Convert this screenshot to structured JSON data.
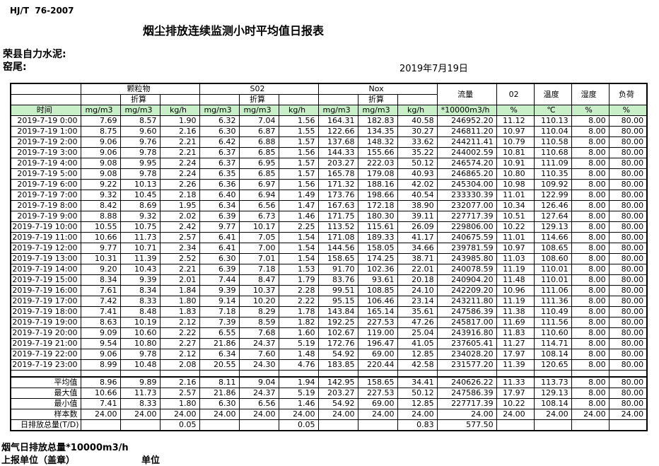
{
  "meta": {
    "standard": "HJ/T  76-2007",
    "title": "烟尘排放连续监测小时平均值日报表",
    "company": "荣县自力水泥:",
    "station": "窑尾:",
    "date": "2019年7月19日"
  },
  "colors": {
    "header_green": "#c8efc8",
    "border": "#000000",
    "background": "#ffffff"
  },
  "table": {
    "time_header": "时间",
    "converted_label": "折算",
    "groups": [
      "颗粒物",
      "S02",
      "Nox"
    ],
    "scalar_headers": [
      "流量",
      "02",
      "温度",
      "湿度",
      "负荷"
    ],
    "unit_headers": [
      "mg/m3",
      "mg/m3",
      "kg/h",
      "mg/m3",
      "mg/m3",
      "kg/h",
      "mg/m3",
      "mg/m3",
      "kg/h",
      "*10000m3/h",
      "%",
      "℃",
      "%",
      "%"
    ],
    "rows": [
      {
        "time": "2019-7-19 0:00",
        "values": [
          "7.69",
          "8.57",
          "1.90",
          "6.32",
          "7.04",
          "1.56",
          "164.31",
          "182.83",
          "40.58",
          "246952.20",
          "11.12",
          "110.13",
          "8.00",
          "80.00"
        ]
      },
      {
        "time": "2019-7-19 1:00",
        "values": [
          "8.75",
          "9.60",
          "2.16",
          "6.30",
          "6.87",
          "1.55",
          "122.66",
          "134.35",
          "30.27",
          "246811.20",
          "10.97",
          "110.04",
          "8.00",
          "80.00"
        ]
      },
      {
        "time": "2019-7-19 2:00",
        "values": [
          "9.06",
          "9.76",
          "2.21",
          "6.42",
          "6.88",
          "1.57",
          "137.68",
          "148.32",
          "33.62",
          "244211.41",
          "10.79",
          "110.58",
          "8.00",
          "80.00"
        ]
      },
      {
        "time": "2019-7-19 3:00",
        "values": [
          "9.06",
          "9.78",
          "2.21",
          "6.37",
          "6.85",
          "1.56",
          "144.33",
          "155.66",
          "35.22",
          "244002.59",
          "10.81",
          "110.68",
          "8.00",
          "80.00"
        ]
      },
      {
        "time": "2019-7-19 4:00",
        "values": [
          "9.08",
          "9.95",
          "2.24",
          "6.37",
          "6.95",
          "1.57",
          "203.27",
          "222.03",
          "50.12",
          "246574.20",
          "10.91",
          "111.09",
          "8.00",
          "80.00"
        ]
      },
      {
        "time": "2019-7-19 5:00",
        "values": [
          "9.08",
          "9.78",
          "2.24",
          "6.35",
          "6.85",
          "1.57",
          "165.78",
          "179.08",
          "40.93",
          "246865.20",
          "10.80",
          "110.35",
          "8.00",
          "80.00"
        ]
      },
      {
        "time": "2019-7-19 6:00",
        "values": [
          "9.22",
          "10.13",
          "2.26",
          "6.36",
          "6.97",
          "1.56",
          "171.32",
          "188.16",
          "42.02",
          "245304.00",
          "10.98",
          "109.92",
          "8.00",
          "80.00"
        ]
      },
      {
        "time": "2019-7-19 7:00",
        "values": [
          "9.32",
          "10.45",
          "2.18",
          "6.40",
          "6.94",
          "1.49",
          "173.76",
          "198.66",
          "40.54",
          "233330.39",
          "11.01",
          "122.99",
          "8.00",
          "80.00"
        ]
      },
      {
        "time": "2019-7-19 8:00",
        "values": [
          "8.42",
          "8.69",
          "1.95",
          "6.34",
          "6.56",
          "1.47",
          "167.63",
          "172.18",
          "38.90",
          "232077.00",
          "10.34",
          "126.46",
          "8.00",
          "80.00"
        ]
      },
      {
        "time": "2019-7-19 9:00",
        "values": [
          "8.88",
          "9.32",
          "2.02",
          "6.39",
          "6.73",
          "1.46",
          "171.75",
          "180.30",
          "39.11",
          "227717.39",
          "10.51",
          "127.64",
          "8.00",
          "80.00"
        ]
      },
      {
        "time": "2019-7-19 10:00",
        "values": [
          "10.55",
          "10.75",
          "2.42",
          "9.77",
          "10.17",
          "2.25",
          "113.52",
          "115.61",
          "26.09",
          "229806.00",
          "10.22",
          "129.13",
          "8.00",
          "80.00"
        ]
      },
      {
        "time": "2019-7-19 11:00",
        "values": [
          "10.66",
          "11.73",
          "2.57",
          "6.41",
          "7.05",
          "1.54",
          "171.08",
          "189.33",
          "41.17",
          "240675.59",
          "11.01",
          "114.66",
          "8.00",
          "80.00"
        ]
      },
      {
        "time": "2019-7-19 12:00",
        "values": [
          "9.77",
          "10.71",
          "2.34",
          "6.41",
          "7.00",
          "1.54",
          "144.56",
          "158.05",
          "34.66",
          "239781.59",
          "10.97",
          "108.65",
          "8.00",
          "80.00"
        ]
      },
      {
        "time": "2019-7-19 13:00",
        "values": [
          "10.31",
          "11.39",
          "2.52",
          "6.30",
          "7.01",
          "1.54",
          "158.65",
          "174.25",
          "38.71",
          "243985.80",
          "11.03",
          "108.60",
          "8.00",
          "80.00"
        ]
      },
      {
        "time": "2019-7-19 14:00",
        "values": [
          "9.20",
          "10.43",
          "2.21",
          "6.39",
          "7.18",
          "1.53",
          "91.70",
          "102.36",
          "22.01",
          "240078.59",
          "11.19",
          "110.01",
          "8.00",
          "80.00"
        ]
      },
      {
        "time": "2019-7-19 15:00",
        "values": [
          "8.34",
          "9.39",
          "2.01",
          "7.44",
          "8.47",
          "1.79",
          "83.76",
          "93.61",
          "20.18",
          "240904.20",
          "11.48",
          "110.01",
          "8.00",
          "80.00"
        ]
      },
      {
        "time": "2019-7-19 16:00",
        "values": [
          "7.61",
          "8.34",
          "1.84",
          "9.39",
          "10.37",
          "2.28",
          "99.51",
          "108.85",
          "24.10",
          "242209.20",
          "10.96",
          "111.06",
          "8.00",
          "80.00"
        ]
      },
      {
        "time": "2019-7-19 17:00",
        "values": [
          "7.42",
          "8.33",
          "1.80",
          "9.14",
          "10.20",
          "2.22",
          "95.15",
          "106.46",
          "23.14",
          "243211.80",
          "11.19",
          "111.36",
          "8.00",
          "80.00"
        ]
      },
      {
        "time": "2019-7-19 18:00",
        "values": [
          "7.41",
          "8.48",
          "1.83",
          "7.18",
          "8.29",
          "1.78",
          "143.84",
          "165.14",
          "35.61",
          "247586.39",
          "11.38",
          "110.49",
          "8.00",
          "80.00"
        ]
      },
      {
        "time": "2019-7-19 19:00",
        "values": [
          "8.63",
          "10.19",
          "2.12",
          "7.39",
          "8.59",
          "1.82",
          "192.25",
          "227.53",
          "47.26",
          "245817.00",
          "11.69",
          "111.56",
          "8.00",
          "80.00"
        ]
      },
      {
        "time": "2019-7-19 20:00",
        "values": [
          "9.09",
          "10.60",
          "2.22",
          "6.55",
          "7.68",
          "1.60",
          "102.67",
          "119.00",
          "25.04",
          "243916.80",
          "11.83",
          "110.60",
          "8.00",
          "80.00"
        ]
      },
      {
        "time": "2019-7-19 21:00",
        "values": [
          "9.54",
          "10.80",
          "2.27",
          "21.86",
          "24.37",
          "5.19",
          "172.76",
          "196.47",
          "41.05",
          "237605.41",
          "11.27",
          "114.71",
          "8.00",
          "80.00"
        ]
      },
      {
        "time": "2019-7-19 22:00",
        "values": [
          "9.06",
          "9.78",
          "2.12",
          "6.34",
          "7.60",
          "1.48",
          "54.92",
          "69.00",
          "12.85",
          "234028.20",
          "17.97",
          "108.14",
          "8.00",
          "80.00"
        ]
      },
      {
        "time": "2019-7-19 23:00",
        "values": [
          "8.99",
          "10.48",
          "2.08",
          "20.55",
          "24.30",
          "4.76",
          "183.85",
          "220.44",
          "42.58",
          "231577.20",
          "11.39",
          "120.65",
          "8.00",
          "80.00"
        ]
      }
    ],
    "summary": [
      {
        "label": "平均值",
        "values": [
          "8.96",
          "9.89",
          "2.16",
          "8.11",
          "9.04",
          "1.94",
          "142.95",
          "158.65",
          "34.41",
          "240626.22",
          "11.33",
          "113.73",
          "8.00",
          "80.00"
        ]
      },
      {
        "label": "最大值",
        "values": [
          "10.66",
          "11.73",
          "2.57",
          "21.86",
          "24.37",
          "5.19",
          "203.27",
          "227.53",
          "50.12",
          "247586.39",
          "17.97",
          "129.13",
          "8.00",
          "80.00"
        ]
      },
      {
        "label": "最小值",
        "values": [
          "7.41",
          "8.33",
          "1.80",
          "6.30",
          "6.56",
          "1.46",
          "54.92",
          "69.00",
          "12.85",
          "227717.39",
          "10.22",
          "108.14",
          "8.00",
          "80.00"
        ]
      },
      {
        "label": "样本数",
        "values": [
          "24.00",
          "24.00",
          "24.00",
          "24.00",
          "24.00",
          "24.00",
          "24.00",
          "24.00",
          "24.00",
          "24.00",
          "24.00",
          "24.00",
          "24.00",
          "24.00"
        ]
      },
      {
        "label": "日排放总量(T/D)",
        "overflow": true,
        "values": [
          "",
          "",
          "0.05",
          "",
          "",
          "0.05",
          "",
          "",
          "0.83",
          "577.50",
          "",
          "",
          "",
          ""
        ]
      }
    ]
  },
  "footer": {
    "line1": "烟气日排放总量*10000m3/h",
    "line2_left": "上报单位（盖章）",
    "line2_right": "单位"
  }
}
